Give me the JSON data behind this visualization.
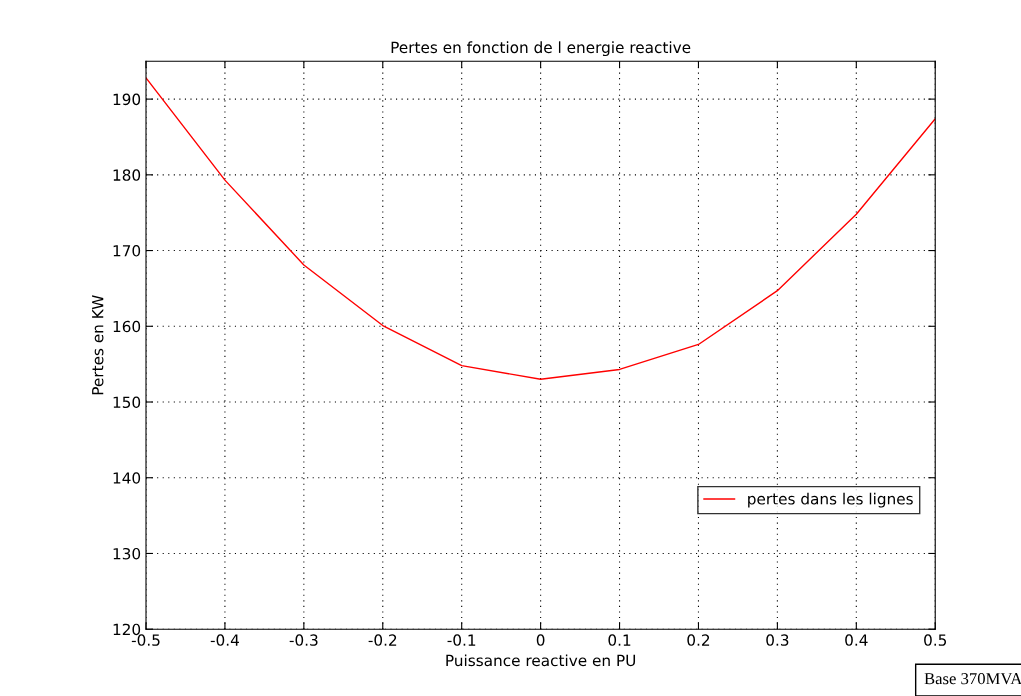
{
  "chart_data": {
    "type": "line",
    "title": "Pertes en fonction de l energie reactive",
    "xlabel": "Puissance reactive en PU",
    "ylabel": "Pertes en KW",
    "x": [
      -0.5,
      -0.4,
      -0.3,
      -0.2,
      -0.1,
      0,
      0.1,
      0.2,
      0.3,
      0.4,
      0.5
    ],
    "series": [
      {
        "name": "pertes dans les lignes",
        "color": "#ff0000",
        "values": [
          192.8,
          179.3,
          168.1,
          160.1,
          154.8,
          153.0,
          154.3,
          157.6,
          164.7,
          174.8,
          187.4
        ]
      }
    ],
    "xlim": [
      -0.5,
      0.5
    ],
    "xticks": [
      -0.5,
      -0.4,
      -0.3,
      -0.2,
      -0.1,
      0,
      0.1,
      0.2,
      0.3,
      0.4,
      0.5
    ],
    "ylim": [
      120,
      195
    ],
    "yticks": [
      120,
      130,
      140,
      150,
      160,
      170,
      180,
      190
    ],
    "grid": true,
    "legend": "bottom right",
    "line_style": "solid",
    "marker": "none",
    "annotations": [
      "Base 370MVA"
    ]
  }
}
